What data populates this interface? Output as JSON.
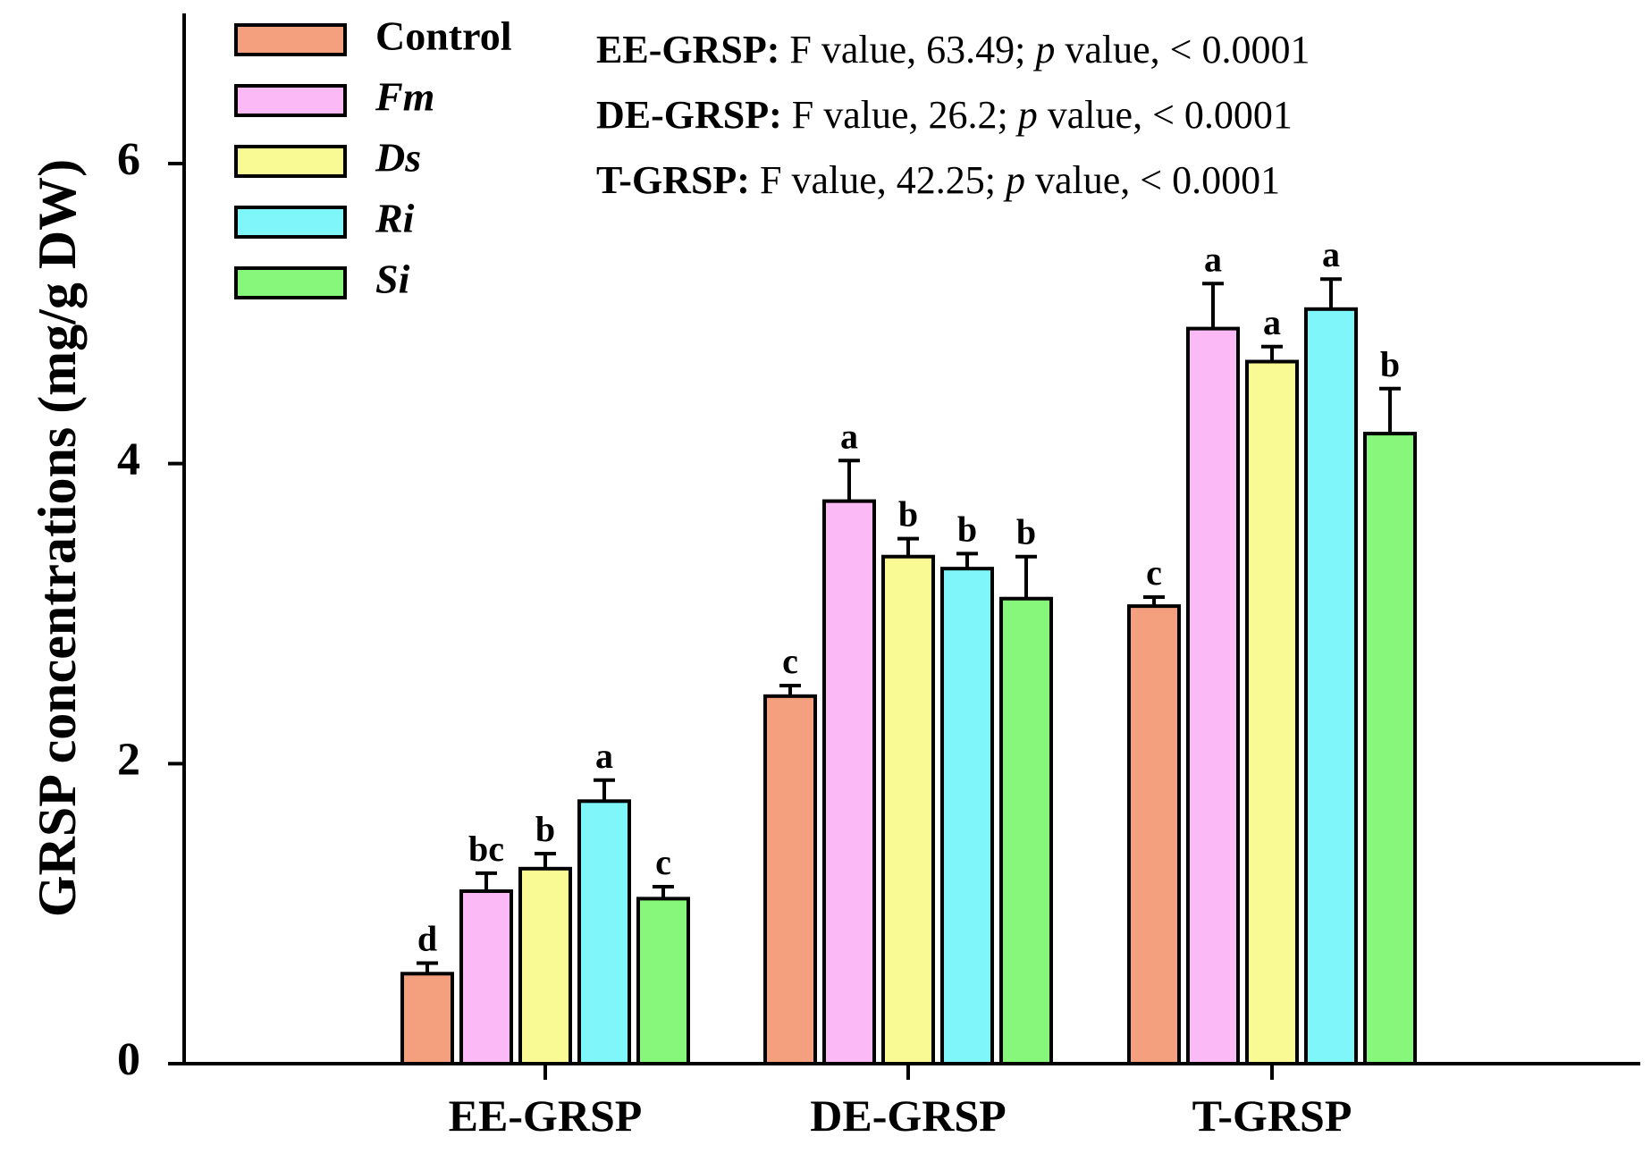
{
  "chart_data": {
    "type": "bar",
    "title": "",
    "xlabel": "",
    "ylabel": "GRSP concentrations (mg/g DW)",
    "ylim": [
      0,
      7
    ],
    "yticks": [
      0,
      2,
      4,
      6
    ],
    "grid": false,
    "legend_position": "top-left",
    "categories": [
      "EE-GRSP",
      "DE-GRSP",
      "T-GRSP"
    ],
    "series": [
      {
        "name": "Control",
        "italic": false,
        "color": "#f4a07e",
        "values": [
          0.6,
          2.45,
          3.05
        ],
        "errors": [
          0.07,
          0.07,
          0.06
        ],
        "letters": [
          "d",
          "c",
          "c"
        ]
      },
      {
        "name": "Fm",
        "italic": true,
        "color": "#fbb9f6",
        "values": [
          1.15,
          3.75,
          4.9
        ],
        "errors": [
          0.12,
          0.27,
          0.3
        ],
        "letters": [
          "bc",
          "a",
          "a"
        ]
      },
      {
        "name": "Ds",
        "italic": true,
        "color": "#fafa94",
        "values": [
          1.3,
          3.38,
          4.68
        ],
        "errors": [
          0.1,
          0.12,
          0.1
        ],
        "letters": [
          "b",
          "b",
          "a"
        ]
      },
      {
        "name": "Ri",
        "italic": true,
        "color": "#7ef6fa",
        "values": [
          1.75,
          3.3,
          5.03
        ],
        "errors": [
          0.14,
          0.1,
          0.2
        ],
        "letters": [
          "a",
          "b",
          "a"
        ]
      },
      {
        "name": "Si",
        "italic": true,
        "color": "#86f77a",
        "values": [
          1.1,
          3.1,
          4.2
        ],
        "errors": [
          0.08,
          0.28,
          0.3
        ],
        "letters": [
          "c",
          "b",
          "b"
        ]
      }
    ],
    "annotations": [
      {
        "label": "EE-GRSP:",
        "f_prefix": "F value, ",
        "f_value": "63.49",
        "p_label": "p",
        "p_text": " value, < 0.0001"
      },
      {
        "label": "DE-GRSP:",
        "f_prefix": "F value, ",
        "f_value": "26.2",
        "p_label": "p",
        "p_text": " value, < 0.0001"
      },
      {
        "label": "T-GRSP:",
        "f_prefix": "F value, ",
        "f_value": "42.25",
        "p_label": "p",
        "p_text": " value, < 0.0001"
      }
    ]
  }
}
